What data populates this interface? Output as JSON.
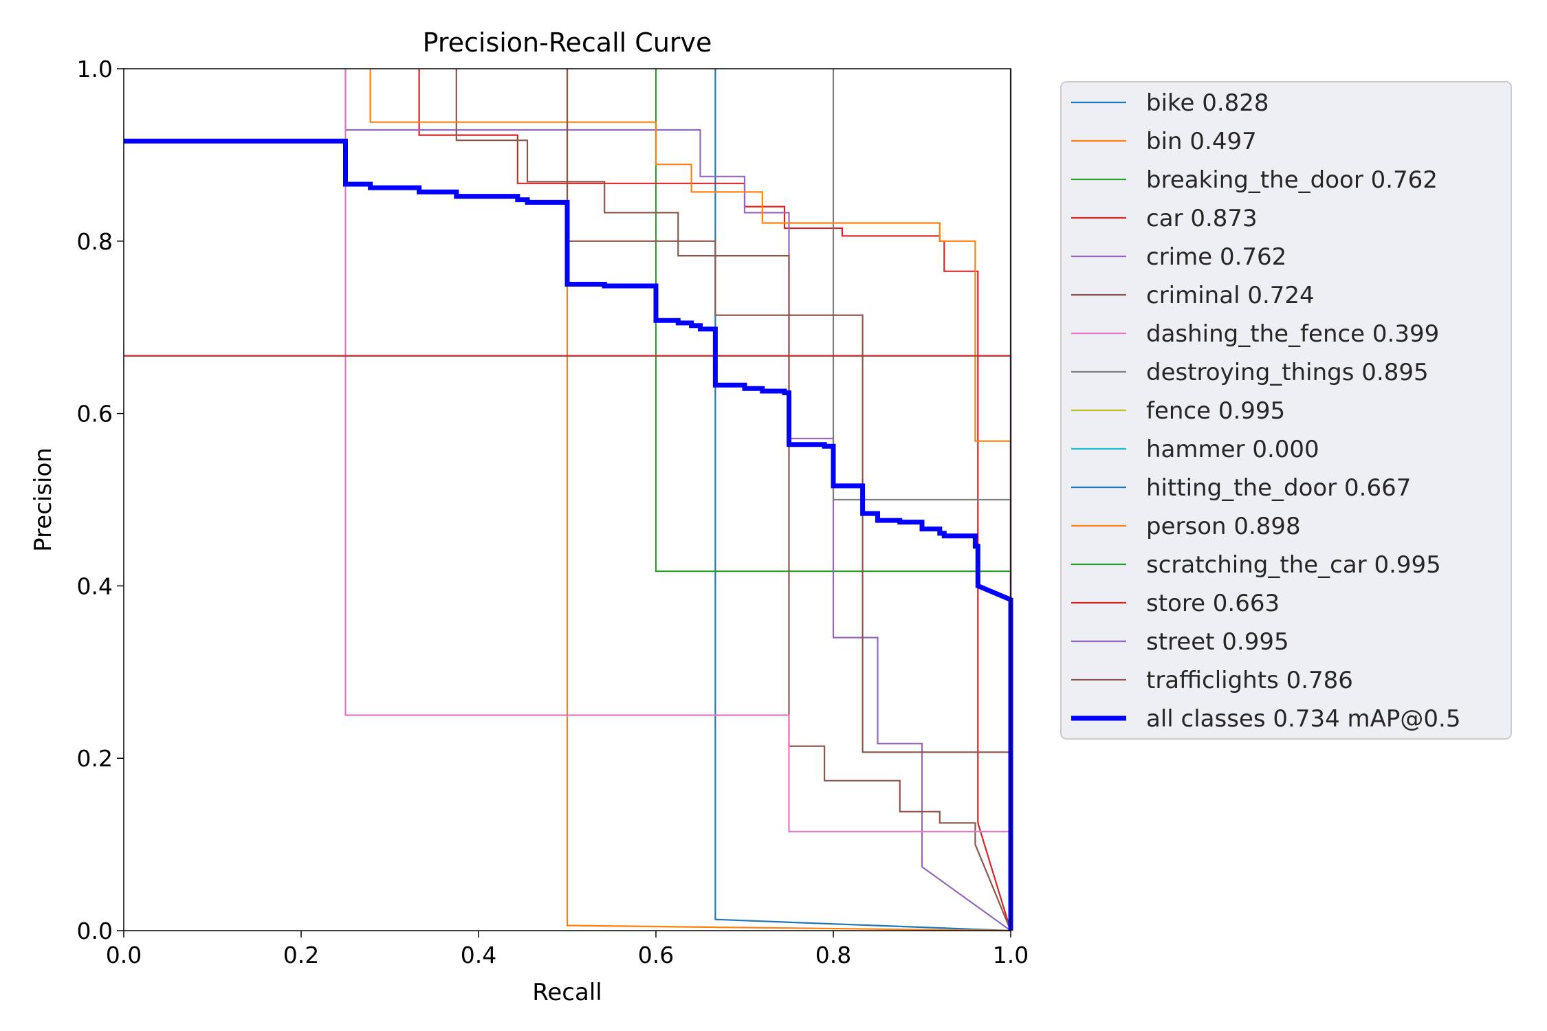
{
  "chart_data": {
    "type": "line",
    "title": "Precision-Recall Curve",
    "xlabel": "Recall",
    "ylabel": "Precision",
    "xlim": [
      0,
      1
    ],
    "ylim": [
      0,
      1
    ],
    "xticks": [
      "0.0",
      "0.2",
      "0.4",
      "0.6",
      "0.8",
      "1.0"
    ],
    "yticks": [
      "0.0",
      "0.2",
      "0.4",
      "0.6",
      "0.8",
      "1.0"
    ],
    "grid": false,
    "legend_position": "outside-right",
    "series": [
      {
        "name": "bike 0.828",
        "color": "#1f77b4",
        "width": 1,
        "points": [
          [
            0.667,
            1.0
          ],
          [
            0.667,
            0.013
          ],
          [
            1.0,
            0.0
          ]
        ]
      },
      {
        "name": "bin 0.497",
        "color": "#ff7f0e",
        "width": 1,
        "points": [
          [
            0.5,
            1.0
          ],
          [
            0.5,
            0.006
          ],
          [
            1.0,
            0.0
          ]
        ]
      },
      {
        "name": "breaking_the_door 0.762",
        "color": "#2ca02c",
        "width": 1,
        "points": [
          [
            0.6,
            1.0
          ],
          [
            0.6,
            0.417
          ],
          [
            1.0,
            0.417
          ],
          [
            1.0,
            0.0
          ]
        ]
      },
      {
        "name": "car 0.873",
        "color": "#d62728",
        "width": 1,
        "points": [
          [
            0.333,
            1.0
          ],
          [
            0.333,
            0.923
          ],
          [
            0.444,
            0.923
          ],
          [
            0.444,
            0.867
          ],
          [
            0.7,
            0.867
          ],
          [
            0.7,
            0.84
          ],
          [
            0.745,
            0.84
          ],
          [
            0.745,
            0.815
          ],
          [
            0.81,
            0.815
          ],
          [
            0.81,
            0.806
          ],
          [
            0.92,
            0.806
          ],
          [
            0.92,
            0.8
          ],
          [
            0.925,
            0.8
          ],
          [
            0.925,
            0.765
          ],
          [
            0.963,
            0.765
          ],
          [
            0.963,
            0.125
          ],
          [
            1.0,
            0.0
          ]
        ]
      },
      {
        "name": "crime 0.762",
        "color": "#9467bd",
        "width": 1,
        "points": [
          [
            0.25,
            1.0
          ],
          [
            0.25,
            0.929
          ],
          [
            0.65,
            0.929
          ],
          [
            0.65,
            0.875
          ],
          [
            0.7,
            0.875
          ],
          [
            0.7,
            0.833
          ],
          [
            0.75,
            0.833
          ],
          [
            0.75,
            0.571
          ],
          [
            0.8,
            0.571
          ],
          [
            0.8,
            0.34
          ],
          [
            0.85,
            0.34
          ],
          [
            0.85,
            0.217
          ],
          [
            0.9,
            0.217
          ],
          [
            0.9,
            0.074
          ],
          [
            1.0,
            0.0
          ]
        ]
      },
      {
        "name": "criminal 0.724",
        "color": "#8c564b",
        "width": 1,
        "points": [
          [
            0.375,
            1.0
          ],
          [
            0.375,
            0.917
          ],
          [
            0.455,
            0.917
          ],
          [
            0.455,
            0.869
          ],
          [
            0.542,
            0.869
          ],
          [
            0.542,
            0.833
          ],
          [
            0.625,
            0.833
          ],
          [
            0.625,
            0.783
          ],
          [
            0.75,
            0.783
          ],
          [
            0.75,
            0.214
          ],
          [
            0.79,
            0.214
          ],
          [
            0.79,
            0.174
          ],
          [
            0.875,
            0.174
          ],
          [
            0.875,
            0.138
          ],
          [
            0.92,
            0.138
          ],
          [
            0.92,
            0.125
          ],
          [
            0.96,
            0.125
          ],
          [
            0.96,
            0.1
          ],
          [
            1.0,
            0.0
          ]
        ]
      },
      {
        "name": "dashing_the_fence 0.399",
        "color": "#e377c2",
        "width": 1,
        "points": [
          [
            0.25,
            1.0
          ],
          [
            0.25,
            0.25
          ],
          [
            0.75,
            0.25
          ],
          [
            0.75,
            0.115
          ],
          [
            1.0,
            0.115
          ],
          [
            1.0,
            0.0
          ]
        ]
      },
      {
        "name": "destroying_things 0.895",
        "color": "#7f7f7f",
        "width": 1,
        "points": [
          [
            0.8,
            1.0
          ],
          [
            0.8,
            0.5
          ],
          [
            1.0,
            0.5
          ],
          [
            1.0,
            0.0
          ]
        ]
      },
      {
        "name": "fence 0.995",
        "color": "#bcbd22",
        "width": 1,
        "points": [
          [
            1.0,
            1.0
          ],
          [
            1.0,
            0.0
          ]
        ]
      },
      {
        "name": "hammer 0.000",
        "color": "#17becf",
        "width": 1,
        "points": []
      },
      {
        "name": "hitting_the_door 0.667",
        "color": "#1f77b4",
        "width": 1,
        "points": [
          [
            0.0,
            0.667
          ],
          [
            1.0,
            0.667
          ],
          [
            1.0,
            0.0
          ]
        ]
      },
      {
        "name": "person 0.898",
        "color": "#ff7f0e",
        "width": 1,
        "points": [
          [
            0.278,
            1.0
          ],
          [
            0.278,
            0.938
          ],
          [
            0.6,
            0.938
          ],
          [
            0.6,
            0.889
          ],
          [
            0.64,
            0.889
          ],
          [
            0.64,
            0.857
          ],
          [
            0.72,
            0.857
          ],
          [
            0.72,
            0.821
          ],
          [
            0.92,
            0.821
          ],
          [
            0.92,
            0.8
          ],
          [
            0.96,
            0.8
          ],
          [
            0.96,
            0.568
          ],
          [
            1.0,
            0.568
          ],
          [
            1.0,
            0.0
          ]
        ]
      },
      {
        "name": "scratching_the_car 0.995",
        "color": "#2ca02c",
        "width": 1,
        "points": [
          [
            1.0,
            1.0
          ],
          [
            1.0,
            0.0
          ]
        ]
      },
      {
        "name": "store 0.663",
        "color": "#d62728",
        "width": 1,
        "points": [
          [
            0.0,
            0.667
          ],
          [
            1.0,
            0.667
          ],
          [
            1.0,
            0.0
          ]
        ]
      },
      {
        "name": "street 0.995",
        "color": "#9467bd",
        "width": 1,
        "points": [
          [
            1.0,
            1.0
          ],
          [
            1.0,
            0.0
          ]
        ]
      },
      {
        "name": "trafficlights 0.786",
        "color": "#8c564b",
        "width": 1,
        "points": [
          [
            0.5,
            1.0
          ],
          [
            0.5,
            0.8
          ],
          [
            0.667,
            0.8
          ],
          [
            0.667,
            0.714
          ],
          [
            0.833,
            0.714
          ],
          [
            0.833,
            0.207
          ],
          [
            1.0,
            0.207
          ],
          [
            1.0,
            0.0
          ]
        ]
      },
      {
        "name": "all classes 0.734 mAP@0.5",
        "color": "#0000ff",
        "width": 3,
        "points": [
          [
            0.0,
            0.916
          ],
          [
            0.25,
            0.916
          ],
          [
            0.25,
            0.866
          ],
          [
            0.278,
            0.866
          ],
          [
            0.278,
            0.862
          ],
          [
            0.333,
            0.862
          ],
          [
            0.333,
            0.857
          ],
          [
            0.375,
            0.857
          ],
          [
            0.375,
            0.852
          ],
          [
            0.444,
            0.852
          ],
          [
            0.444,
            0.848
          ],
          [
            0.455,
            0.848
          ],
          [
            0.455,
            0.845
          ],
          [
            0.5,
            0.845
          ],
          [
            0.5,
            0.75
          ],
          [
            0.542,
            0.75
          ],
          [
            0.542,
            0.748
          ],
          [
            0.6,
            0.748
          ],
          [
            0.6,
            0.708
          ],
          [
            0.625,
            0.708
          ],
          [
            0.625,
            0.705
          ],
          [
            0.64,
            0.705
          ],
          [
            0.64,
            0.702
          ],
          [
            0.65,
            0.702
          ],
          [
            0.65,
            0.698
          ],
          [
            0.667,
            0.698
          ],
          [
            0.667,
            0.633
          ],
          [
            0.7,
            0.633
          ],
          [
            0.7,
            0.629
          ],
          [
            0.72,
            0.629
          ],
          [
            0.72,
            0.626
          ],
          [
            0.745,
            0.626
          ],
          [
            0.745,
            0.624
          ],
          [
            0.75,
            0.624
          ],
          [
            0.75,
            0.564
          ],
          [
            0.79,
            0.564
          ],
          [
            0.79,
            0.562
          ],
          [
            0.8,
            0.562
          ],
          [
            0.8,
            0.516
          ],
          [
            0.833,
            0.516
          ],
          [
            0.833,
            0.484
          ],
          [
            0.85,
            0.484
          ],
          [
            0.85,
            0.476
          ],
          [
            0.875,
            0.476
          ],
          [
            0.875,
            0.474
          ],
          [
            0.9,
            0.474
          ],
          [
            0.9,
            0.466
          ],
          [
            0.92,
            0.466
          ],
          [
            0.92,
            0.461
          ],
          [
            0.925,
            0.461
          ],
          [
            0.925,
            0.458
          ],
          [
            0.96,
            0.458
          ],
          [
            0.96,
            0.446
          ],
          [
            0.963,
            0.446
          ],
          [
            0.963,
            0.4
          ],
          [
            1.0,
            0.384
          ],
          [
            1.0,
            0.0
          ]
        ]
      }
    ]
  }
}
